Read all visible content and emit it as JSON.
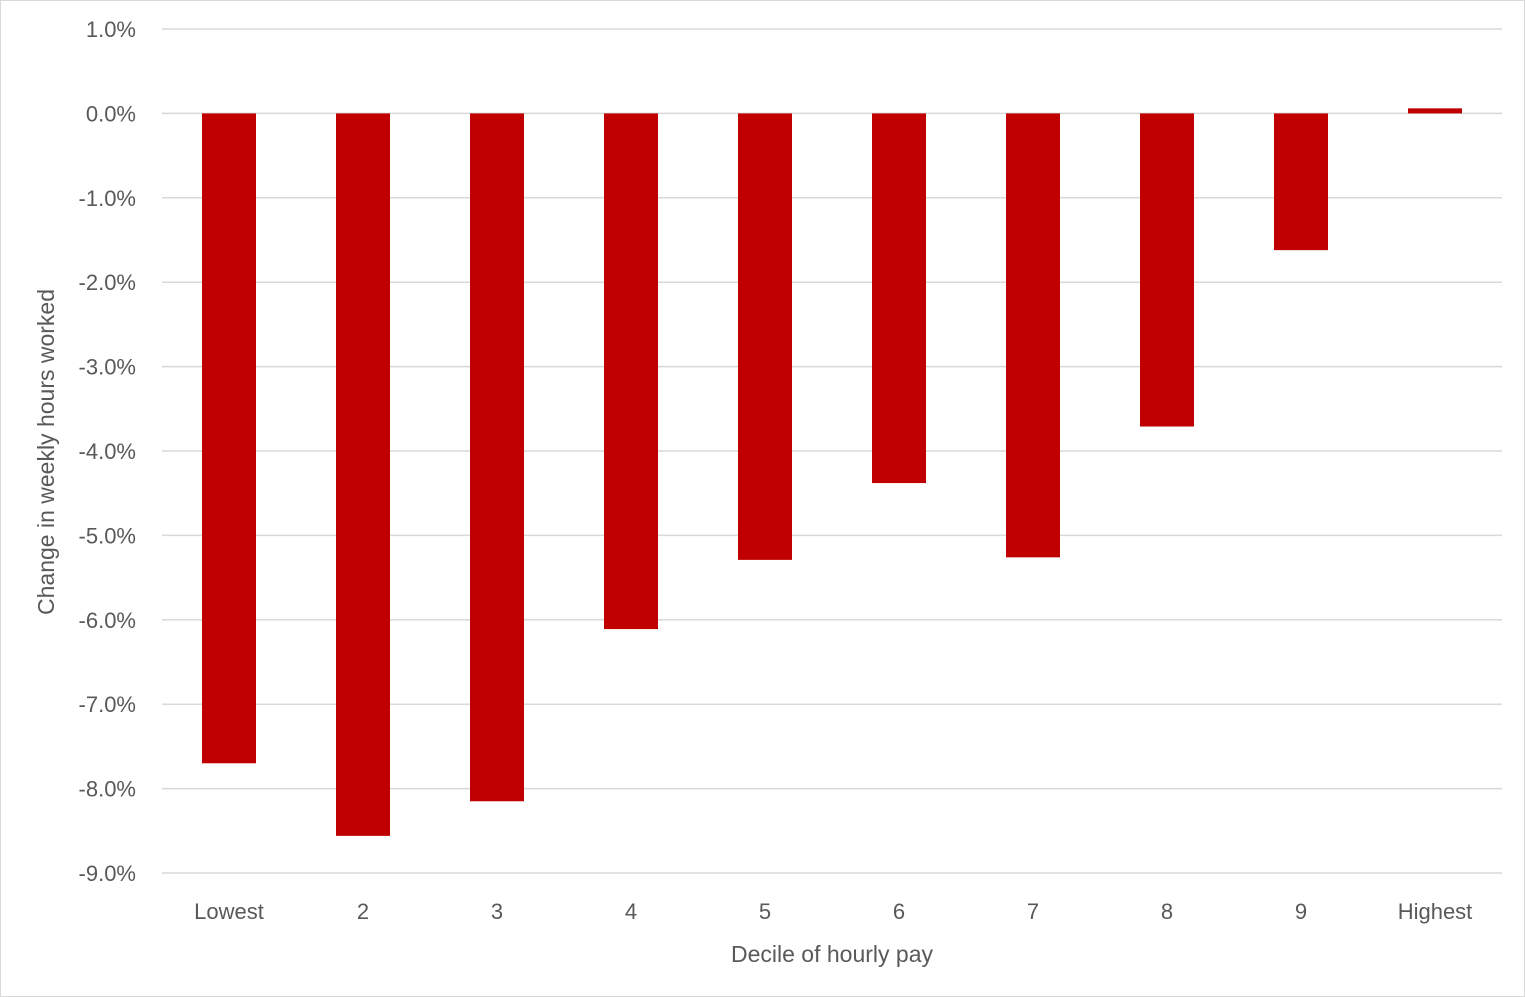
{
  "chart_data": {
    "type": "bar",
    "title": "",
    "xlabel": "Decile of hourly pay",
    "ylabel": "Change in weekly hours worked",
    "categories": [
      "Lowest",
      "2",
      "3",
      "4",
      "5",
      "6",
      "7",
      "8",
      "9",
      "Highest"
    ],
    "values": [
      -7.7,
      -8.56,
      -8.15,
      -6.11,
      -5.29,
      -4.38,
      -5.26,
      -3.71,
      -1.62,
      0.06
    ],
    "value_unit": "%",
    "ylim": [
      -9.0,
      1.0
    ],
    "yticks": [
      1.0,
      0.0,
      -1.0,
      -2.0,
      -3.0,
      -4.0,
      -5.0,
      -6.0,
      -7.0,
      -8.0,
      -9.0
    ],
    "ytick_labels": [
      "1.0%",
      "0.0%",
      "-1.0%",
      "-2.0%",
      "-3.0%",
      "-4.0%",
      "-5.0%",
      "-6.0%",
      "-7.0%",
      "-8.0%",
      "-9.0%"
    ],
    "grid": true,
    "legend": "none",
    "colors": {
      "bar": "#c00000",
      "grid": "#d9d9d9",
      "text": "#595959"
    }
  }
}
